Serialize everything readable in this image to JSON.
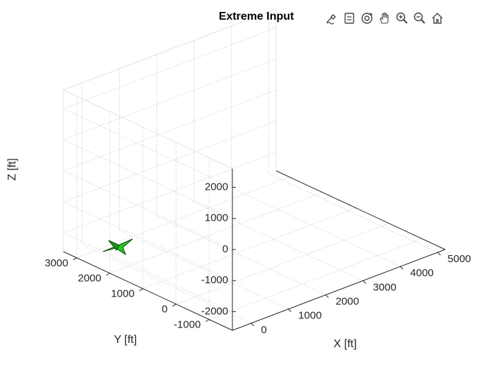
{
  "chart_data": {
    "type": "3d-plot",
    "title": "Extreme Input",
    "xlabel": "X [ft]",
    "ylabel": "Y [ft]",
    "zlabel": "Z [ft]",
    "xlim": [
      -500,
      5200
    ],
    "ylim": [
      -1700,
      3400
    ],
    "zlim": [
      -2600,
      2600
    ],
    "xticks": [
      0,
      1000,
      2000,
      3000,
      4000,
      5000
    ],
    "yticks": [
      -1000,
      0,
      1000,
      2000,
      3000
    ],
    "zticks": [
      -2000,
      -1000,
      0,
      1000,
      2000
    ],
    "grid": true,
    "object": {
      "name": "aircraft",
      "color": "#22cc22",
      "x": 0,
      "y": 2300,
      "z": -2100
    }
  },
  "toolbar": [
    {
      "name": "brush-icon"
    },
    {
      "name": "data-tips-icon"
    },
    {
      "name": "rotate-3d-icon"
    },
    {
      "name": "pan-icon"
    },
    {
      "name": "zoom-in-icon"
    },
    {
      "name": "zoom-out-icon"
    },
    {
      "name": "home-icon"
    }
  ]
}
